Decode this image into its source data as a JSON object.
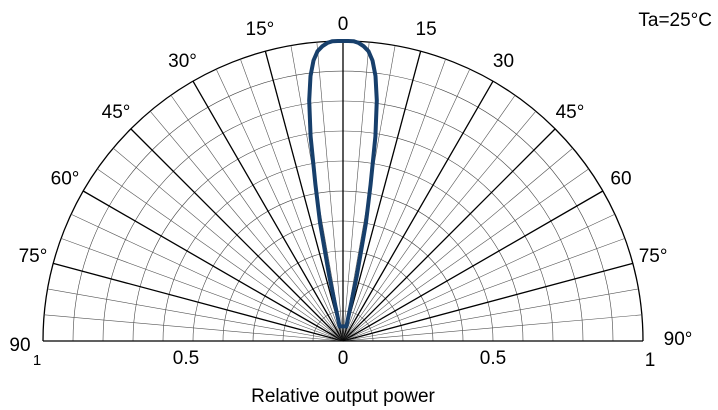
{
  "chart_data": {
    "type": "polar",
    "title": "",
    "annotation": "Ta=25°C",
    "xlabel": "Relative output power",
    "angle_range_deg": [
      -90,
      90
    ],
    "radial_range": [
      0,
      1
    ],
    "angle_tick_labels_left": [
      "15°",
      "30°",
      "45°",
      "60°",
      "75°",
      "90"
    ],
    "angle_tick_labels_right": [
      "15",
      "30",
      "45°",
      "60",
      "75°",
      "90°"
    ],
    "angle_tick_label_top": "0",
    "radial_tick_labels_left": [
      "1",
      "0.5"
    ],
    "radial_tick_labels_right": [
      "0.5",
      "1"
    ],
    "radial_tick_label_center": "0",
    "grid": true,
    "grid_radial_step": 0.1,
    "grid_angle_step_deg": 5,
    "series": [
      {
        "color": "#173f6b",
        "angles_deg": [
          -13,
          -12,
          -11,
          -10,
          -9,
          -8,
          -7,
          -6,
          -5,
          -4,
          -3,
          -2,
          -1,
          0,
          1,
          2,
          3,
          4,
          5,
          6,
          7,
          8,
          9,
          10,
          11,
          12,
          13
        ],
        "values": [
          0.05,
          0.22,
          0.4,
          0.53,
          0.69,
          0.81,
          0.89,
          0.94,
          0.97,
          0.985,
          0.995,
          1.0,
          1.0,
          1.0,
          1.0,
          1.0,
          0.995,
          0.985,
          0.97,
          0.94,
          0.89,
          0.81,
          0.69,
          0.53,
          0.4,
          0.22,
          0.05
        ]
      }
    ]
  }
}
